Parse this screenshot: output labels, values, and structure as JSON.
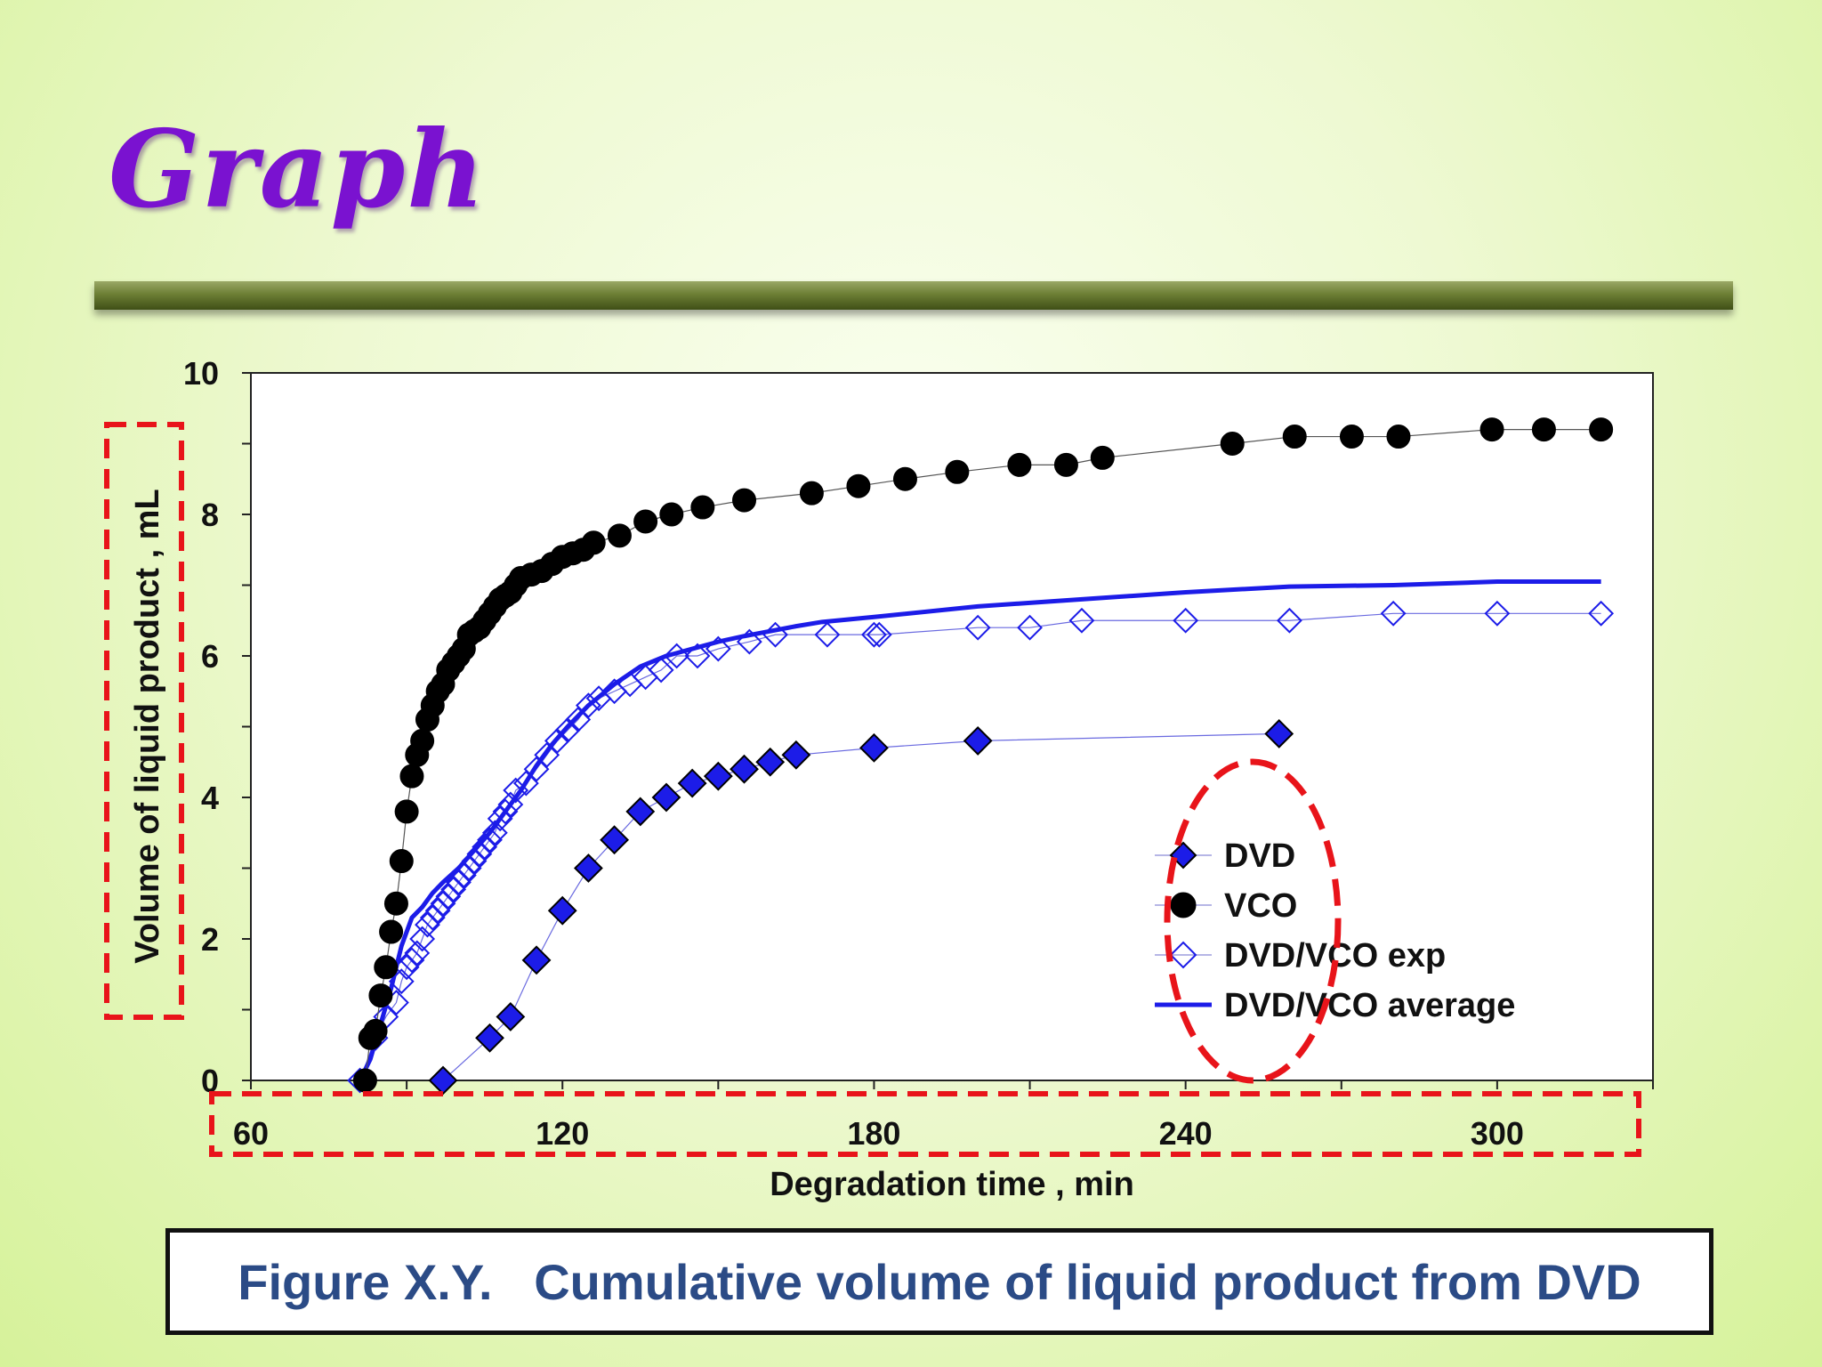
{
  "slide": {
    "title": "Graph",
    "caption": "Figure X.Y.   Cumulative volume of liquid product from DVD"
  },
  "colors": {
    "title": "#7a12d0",
    "title_bar": "#5e6e2a",
    "caption_text": "#2b4b86",
    "series_blue": "#1c1ce8",
    "series_black": "#000000",
    "highlight": "#e8141a"
  },
  "chart_data": {
    "type": "scatter",
    "title": "",
    "xlabel": "Degradation time , min",
    "ylabel": "Volume of liquid product , mL",
    "xlim": [
      60,
      330
    ],
    "ylim": [
      0,
      10
    ],
    "x_ticks": [
      60,
      120,
      180,
      240,
      300
    ],
    "x_tick_labels": [
      "60",
      "120",
      "180",
      "240",
      "300"
    ],
    "y_ticks": [
      0,
      2,
      4,
      6,
      8,
      10
    ],
    "y_tick_labels": [
      "0",
      "2",
      "4",
      "6",
      "8",
      "10"
    ],
    "grid": false,
    "legend_position": "lower-right",
    "series": [
      {
        "name": "DVD",
        "marker": "filled-diamond",
        "color": "#1c1ce8",
        "x": [
          97,
          106,
          110,
          115,
          120,
          125,
          130,
          135,
          140,
          145,
          150,
          155,
          160,
          165,
          180,
          200,
          258
        ],
        "y": [
          0,
          0.6,
          0.9,
          1.7,
          2.4,
          3.0,
          3.4,
          3.8,
          4.0,
          4.2,
          4.3,
          4.4,
          4.5,
          4.6,
          4.7,
          4.8,
          4.9
        ]
      },
      {
        "name": "VCO",
        "marker": "filled-circle",
        "color": "#000000",
        "x": [
          82,
          83,
          84,
          85,
          86,
          87,
          88,
          89,
          90,
          91,
          92,
          93,
          94,
          95,
          96,
          97,
          98,
          99,
          100,
          101,
          102,
          103,
          104,
          105,
          106,
          107,
          108,
          109,
          110,
          111,
          112,
          114,
          116,
          118,
          120,
          122,
          124,
          126,
          131,
          136,
          141,
          147,
          155,
          168,
          177,
          186,
          196,
          208,
          217,
          224,
          249,
          261,
          272,
          281,
          299,
          309,
          320
        ],
        "y": [
          0,
          0.6,
          0.7,
          1.2,
          1.6,
          2.1,
          2.5,
          3.1,
          3.8,
          4.3,
          4.6,
          4.8,
          5.1,
          5.3,
          5.5,
          5.6,
          5.8,
          5.9,
          6.0,
          6.1,
          6.3,
          6.35,
          6.4,
          6.5,
          6.6,
          6.7,
          6.8,
          6.85,
          6.9,
          7.0,
          7.1,
          7.15,
          7.2,
          7.3,
          7.4,
          7.45,
          7.5,
          7.6,
          7.7,
          7.9,
          8.0,
          8.1,
          8.2,
          8.3,
          8.4,
          8.5,
          8.6,
          8.7,
          8.7,
          8.8,
          9.0,
          9.1,
          9.1,
          9.1,
          9.2,
          9.2,
          9.2
        ]
      },
      {
        "name": "DVD/VCO exp",
        "marker": "open-diamond",
        "color": "#1c1ce8",
        "x": [
          81,
          84,
          86,
          88,
          89,
          90,
          91,
          92,
          93,
          94,
          95,
          96,
          97,
          98,
          99,
          100,
          101,
          102,
          103,
          104,
          105,
          106,
          107,
          108,
          109,
          110,
          111,
          113,
          115,
          117,
          119,
          121,
          123,
          125,
          127,
          130,
          133,
          136,
          139,
          142,
          146,
          150,
          156,
          161,
          171,
          180,
          181,
          200,
          210,
          220,
          240,
          260,
          280,
          300,
          320
        ],
        "y": [
          0,
          0.6,
          0.9,
          1.1,
          1.4,
          1.6,
          1.7,
          1.8,
          2.0,
          2.2,
          2.3,
          2.4,
          2.5,
          2.6,
          2.7,
          2.8,
          2.9,
          3.0,
          3.1,
          3.2,
          3.3,
          3.4,
          3.5,
          3.7,
          3.8,
          3.9,
          4.1,
          4.2,
          4.4,
          4.6,
          4.8,
          4.95,
          5.1,
          5.3,
          5.4,
          5.5,
          5.6,
          5.7,
          5.8,
          6.0,
          6.0,
          6.1,
          6.2,
          6.3,
          6.3,
          6.3,
          6.3,
          6.4,
          6.4,
          6.5,
          6.5,
          6.5,
          6.6,
          6.6,
          6.6
        ]
      },
      {
        "name": "DVD/VCO average",
        "marker": "line",
        "color": "#1c1ce8",
        "x": [
          81,
          83,
          85,
          87,
          89,
          91,
          93,
          95,
          97,
          100,
          103,
          106,
          109,
          112,
          115,
          118,
          121,
          125,
          130,
          135,
          140,
          145,
          150,
          155,
          160,
          165,
          170,
          180,
          200,
          220,
          240,
          260,
          280,
          300,
          320
        ],
        "y": [
          0,
          0.3,
          0.8,
          1.3,
          1.9,
          2.3,
          2.45,
          2.65,
          2.8,
          3.0,
          3.25,
          3.5,
          3.8,
          4.1,
          4.45,
          4.75,
          5.0,
          5.3,
          5.6,
          5.85,
          6.0,
          6.1,
          6.2,
          6.28,
          6.35,
          6.42,
          6.48,
          6.55,
          6.7,
          6.8,
          6.9,
          6.98,
          7.0,
          7.05,
          7.05
        ]
      }
    ]
  }
}
